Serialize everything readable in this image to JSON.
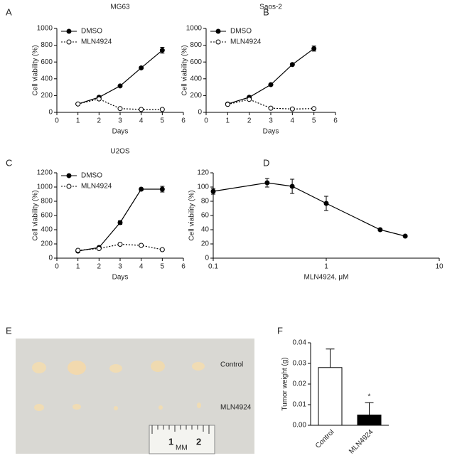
{
  "chart_data": [
    {
      "type": "line",
      "panel": "A",
      "title": "MG63",
      "xlabel": "Days",
      "ylabel": "Cell viability (%)",
      "x": [
        1,
        2,
        3,
        4,
        5
      ],
      "xlim": [
        0,
        6
      ],
      "xticks": [
        0,
        1,
        2,
        3,
        4,
        5,
        6
      ],
      "ylim": [
        0,
        1000
      ],
      "yticks": [
        0,
        200,
        400,
        600,
        800,
        1000
      ],
      "legend": "upper left",
      "series": [
        {
          "name": "DMSO",
          "color": "#000000",
          "line_style": "solid",
          "marker": "filled",
          "values": [
            100,
            180,
            315,
            530,
            740
          ],
          "errors": [
            8,
            10,
            10,
            10,
            35
          ]
        },
        {
          "name": "MLN4924",
          "color": "#000000",
          "line_style": "dotted",
          "marker": "open",
          "values": [
            100,
            160,
            45,
            35,
            35
          ],
          "errors": [
            8,
            10,
            5,
            5,
            5
          ]
        }
      ]
    },
    {
      "type": "line",
      "panel": "B",
      "title": "Saos-2",
      "xlabel": "Days",
      "ylabel": "Cell viability (%)",
      "x": [
        1,
        2,
        3,
        4,
        5
      ],
      "xlim": [
        0,
        6
      ],
      "xticks": [
        0,
        1,
        2,
        3,
        4,
        5,
        6
      ],
      "ylim": [
        0,
        1000
      ],
      "yticks": [
        0,
        200,
        400,
        600,
        800,
        1000
      ],
      "legend": "upper left",
      "series": [
        {
          "name": "DMSO",
          "color": "#000000",
          "line_style": "solid",
          "marker": "filled",
          "values": [
            100,
            180,
            330,
            570,
            760
          ],
          "errors": [
            8,
            10,
            10,
            10,
            30
          ]
        },
        {
          "name": "MLN4924",
          "color": "#000000",
          "line_style": "dotted",
          "marker": "open",
          "values": [
            95,
            155,
            50,
            40,
            45
          ],
          "errors": [
            8,
            10,
            5,
            5,
            5
          ]
        }
      ]
    },
    {
      "type": "line",
      "panel": "C",
      "title": "U2OS",
      "xlabel": "Days",
      "ylabel": "Cell viability (%)",
      "x": [
        1,
        2,
        3,
        4,
        5
      ],
      "xlim": [
        0,
        6
      ],
      "xticks": [
        0,
        1,
        2,
        3,
        4,
        5,
        6
      ],
      "ylim": [
        0,
        1200
      ],
      "yticks": [
        0,
        200,
        400,
        600,
        800,
        1000,
        1200
      ],
      "legend": "upper left",
      "series": [
        {
          "name": "DMSO",
          "color": "#000000",
          "line_style": "solid",
          "marker": "filled",
          "values": [
            100,
            150,
            500,
            970,
            970
          ],
          "errors": [
            8,
            10,
            25,
            10,
            40
          ]
        },
        {
          "name": "MLN4924",
          "color": "#000000",
          "line_style": "dotted",
          "marker": "open",
          "values": [
            110,
            135,
            195,
            180,
            120
          ],
          "errors": [
            8,
            10,
            10,
            10,
            8
          ]
        }
      ]
    },
    {
      "type": "line",
      "panel": "D",
      "xlabel": "MLN4924, μM",
      "ylabel": "Cell viability (%)",
      "xscale": "log",
      "x": [
        0.1,
        0.3,
        0.5,
        1,
        3,
        5
      ],
      "xlim": [
        0.1,
        10
      ],
      "xticks": [
        0.1,
        1,
        10
      ],
      "ylim": [
        0,
        120
      ],
      "yticks": [
        0,
        20,
        40,
        60,
        80,
        100,
        120
      ],
      "series": [
        {
          "color": "#000000",
          "line_style": "solid",
          "marker": "filled",
          "values": [
            94,
            106,
            101,
            77,
            40,
            31
          ],
          "errors": [
            4,
            6,
            10,
            10,
            null,
            null
          ]
        }
      ]
    },
    {
      "type": "bar",
      "panel": "F",
      "ylabel": "Tumor weight (g)",
      "categories": [
        "Control",
        "MLN4924"
      ],
      "values": [
        0.028,
        0.005
      ],
      "errors": [
        0.009,
        0.006
      ],
      "colors": [
        "#ffffff",
        "#000000"
      ],
      "annotations": [
        null,
        "*"
      ],
      "ylim": [
        0,
        0.04
      ],
      "yticks": [
        {
          "value": 0,
          "label": "0.00"
        },
        0.01,
        0.02,
        0.03,
        0.04
      ]
    }
  ],
  "photo": {
    "panel": "E",
    "row_labels": [
      "Control",
      "MLN4924"
    ],
    "ruler_labels": [
      "1",
      "MM",
      "2"
    ]
  }
}
